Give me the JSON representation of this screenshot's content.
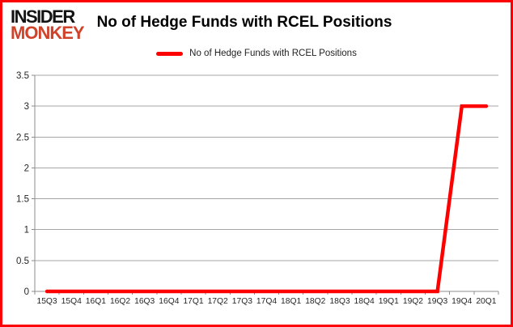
{
  "window": {
    "border_color": "#fb0004",
    "background": "#ffffff"
  },
  "logo": {
    "line1": "INSIDER",
    "line2": "MONKEY",
    "line1_color": "#131313",
    "line2_color": "#d0432b"
  },
  "header": {
    "title": "No of Hedge Funds with RCEL Positions"
  },
  "legend": {
    "label": "No of Hedge Funds with RCEL Positions",
    "swatch_color": "#ff0000"
  },
  "chart_data": {
    "type": "line",
    "title": "No of Hedge Funds with RCEL Positions",
    "categories": [
      "15Q3",
      "15Q4",
      "16Q1",
      "16Q2",
      "16Q3",
      "16Q4",
      "17Q1",
      "17Q2",
      "17Q3",
      "17Q4",
      "18Q1",
      "18Q2",
      "18Q3",
      "18Q4",
      "19Q1",
      "19Q2",
      "19Q3",
      "19Q4",
      "20Q1"
    ],
    "series": [
      {
        "name": "No of Hedge Funds with RCEL Positions",
        "color": "#ff0000",
        "line_width": 4.5,
        "values": [
          0,
          0,
          0,
          0,
          0,
          0,
          0,
          0,
          0,
          0,
          0,
          0,
          0,
          0,
          0,
          0,
          0,
          3,
          3
        ]
      }
    ],
    "xlabel": "",
    "ylabel": "",
    "ylim": [
      0,
      3.5
    ],
    "yticks": [
      0,
      0.5,
      1,
      1.5,
      2,
      2.5,
      3,
      3.5
    ],
    "grid": true,
    "gridline_color": "#a6a6a6",
    "axis_color": "#8c8c8c",
    "tick_label_color": "#262626",
    "legend_position": "top-center"
  }
}
